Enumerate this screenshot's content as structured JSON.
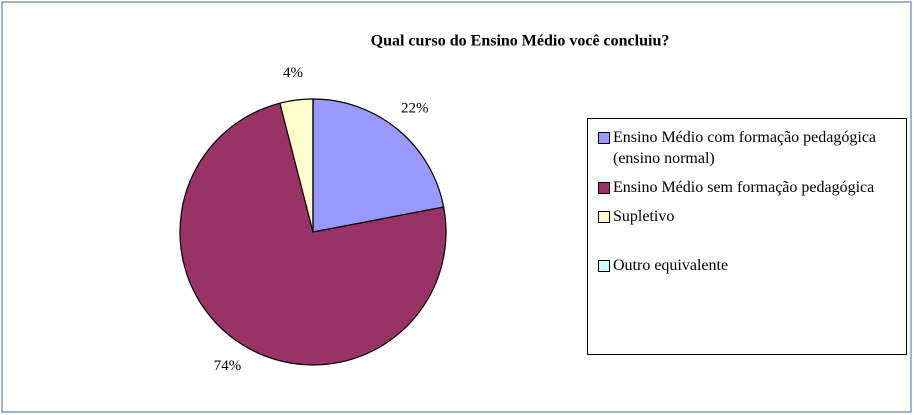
{
  "chart_data": {
    "type": "pie",
    "title": "Qual curso do Ensino Médio você concluiu?",
    "categories": [
      "Ensino Médio com formação pedagógica (ensino normal)",
      "Ensino Médio sem formação pedagógica",
      "Supletivo",
      "Outro equivalente"
    ],
    "values": [
      22,
      74,
      4,
      0
    ],
    "value_labels": [
      "22%",
      "74%",
      "4%",
      null
    ],
    "colors": [
      "#9999ff",
      "#993366",
      "#ffffcc",
      "#ccffff"
    ],
    "legend": "right"
  }
}
